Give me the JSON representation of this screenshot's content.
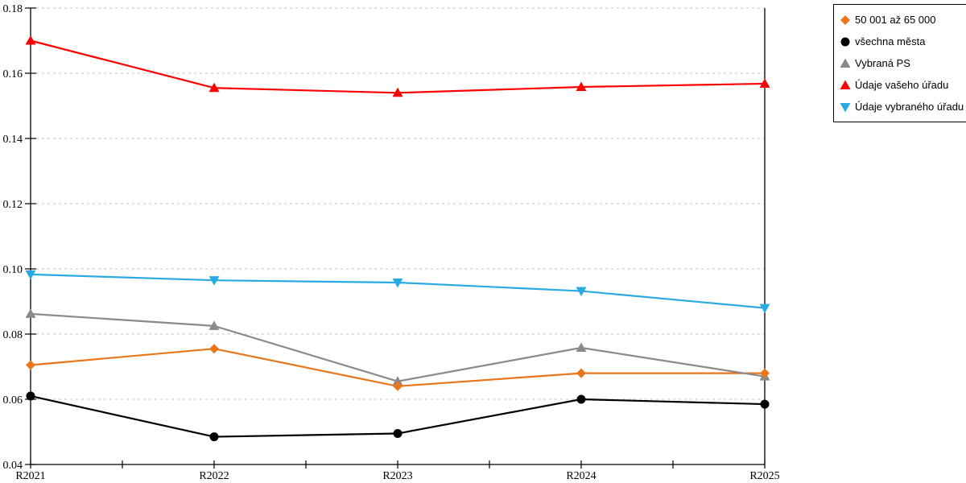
{
  "chart_data": {
    "type": "line",
    "title": "",
    "xlabel": "",
    "ylabel": "",
    "categories": [
      "R2021",
      "R2022",
      "R2023",
      "R2024",
      "R2025"
    ],
    "series": [
      {
        "name": "50 001 až 65 000",
        "marker": "diamond",
        "color": "#E8761B",
        "values": [
          0.0705,
          0.0755,
          0.064,
          0.068,
          0.068
        ]
      },
      {
        "name": "všechna města",
        "marker": "circle",
        "color": "#000000",
        "values": [
          0.061,
          0.0485,
          0.0495,
          0.06,
          0.0585
        ]
      },
      {
        "name": "Vybraná PS",
        "marker": "triangle-up",
        "color": "#8A8A8A",
        "values": [
          0.0862,
          0.0825,
          0.0655,
          0.0758,
          0.067
        ]
      },
      {
        "name": "Údaje vašeho úřadu",
        "marker": "triangle-up",
        "color": "#FF0000",
        "values": [
          0.17,
          0.1555,
          0.154,
          0.1558,
          0.1568
        ]
      },
      {
        "name": "Údaje vybraného úřadu",
        "marker": "triangle-down",
        "color": "#29ABE2",
        "values": [
          0.0983,
          0.0965,
          0.0958,
          0.0932,
          0.088
        ]
      }
    ],
    "ylim": [
      0.04,
      0.18
    ],
    "y_ticks": [
      0.04,
      0.06,
      0.08,
      0.1,
      0.12,
      0.14,
      0.16,
      0.18
    ],
    "y_tick_decimals": 2,
    "grid": "horizontal-dashed",
    "gridline_color": "#c3c3c3",
    "axis_color": "#000000",
    "legend_position": "top-right",
    "legend_order": [
      "50 001 až 65 000",
      "všechna města",
      "Vybraná PS",
      "Údaje vašeho úřadu",
      "Údaje vybraného úřadu"
    ]
  }
}
